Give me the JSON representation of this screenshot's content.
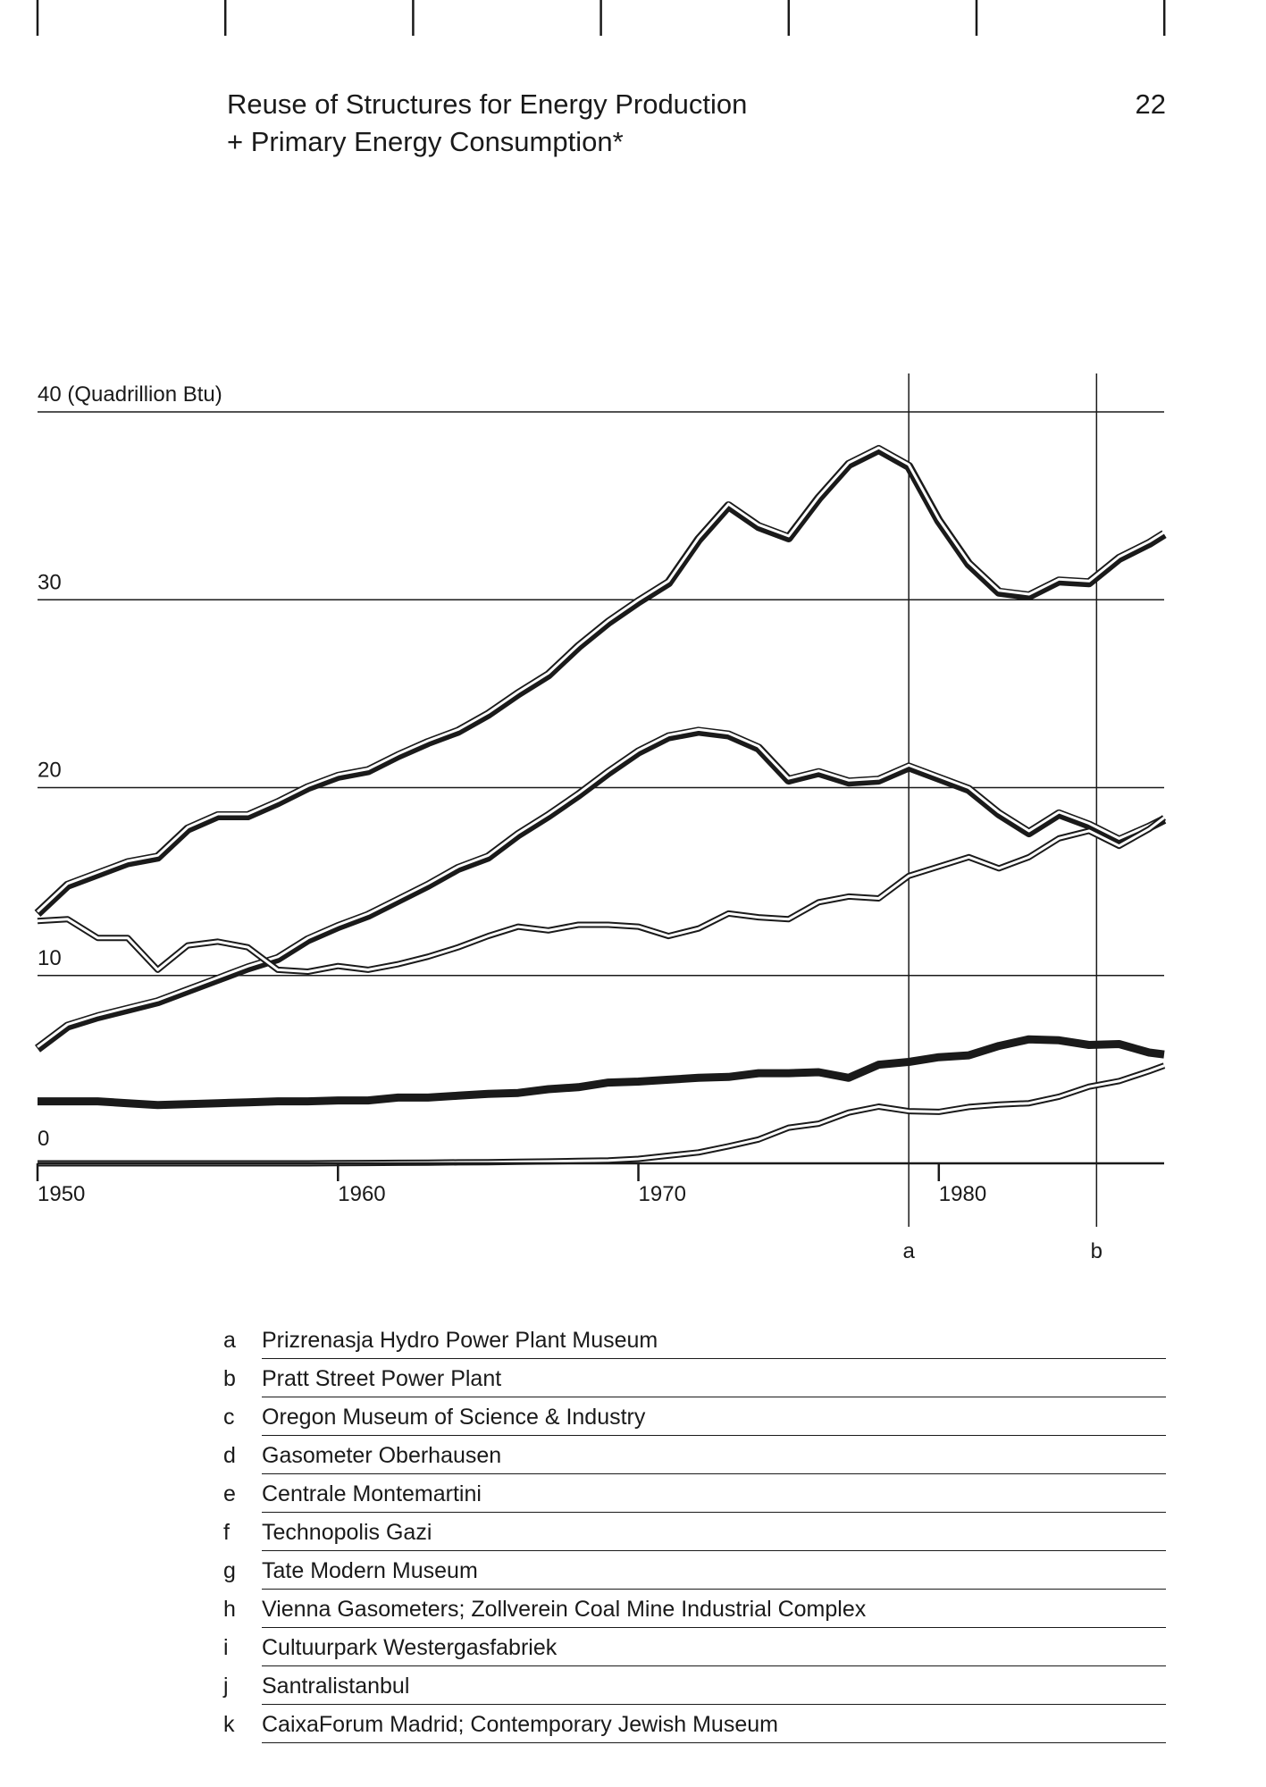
{
  "header": {
    "title_line1": "Reuse of Structures for Energy Production",
    "title_line2": "+ Primary Energy Consumption*",
    "page_number": "22"
  },
  "chart_data": {
    "type": "line",
    "title": "",
    "ylabel": "(Quadrillion Btu)",
    "ylim": [
      0,
      40
    ],
    "xlim": [
      1950,
      1987.5
    ],
    "x_ticks": [
      "1950",
      "1960",
      "1970",
      "1980"
    ],
    "y_ticks": [
      "0",
      "10",
      "20",
      "30",
      "40"
    ],
    "y_top_label": "40 (Quadrillion Btu)",
    "grid": true,
    "x": [
      1950,
      1951,
      1952,
      1953,
      1954,
      1955,
      1956,
      1957,
      1958,
      1959,
      1960,
      1961,
      1962,
      1963,
      1964,
      1965,
      1966,
      1967,
      1968,
      1969,
      1970,
      1971,
      1972,
      1973,
      1974,
      1975,
      1976,
      1977,
      1978,
      1979,
      1980,
      1981,
      1982,
      1983,
      1984,
      1985,
      1986,
      1987,
      1987.5
    ],
    "series": [
      {
        "style": "thick-outline",
        "values": [
          13.3,
          14.8,
          15.4,
          16.0,
          16.3,
          17.8,
          18.5,
          18.5,
          19.2,
          20.0,
          20.6,
          20.9,
          21.7,
          22.4,
          23.0,
          23.9,
          25.0,
          26.0,
          27.5,
          28.8,
          29.9,
          30.9,
          33.2,
          35.0,
          33.9,
          33.3,
          35.4,
          37.2,
          38.0,
          37.1,
          34.2,
          31.9,
          30.4,
          30.2,
          31.0,
          30.9,
          32.2,
          33.0,
          33.5
        ]
      },
      {
        "style": "thick-outline",
        "values": [
          6.1,
          7.3,
          7.8,
          8.2,
          8.6,
          9.2,
          9.8,
          10.4,
          10.9,
          11.9,
          12.6,
          13.2,
          14.0,
          14.8,
          15.7,
          16.3,
          17.5,
          18.5,
          19.6,
          20.8,
          21.9,
          22.7,
          23.0,
          22.8,
          22.1,
          20.4,
          20.8,
          20.3,
          20.4,
          21.1,
          20.5,
          19.9,
          18.6,
          17.6,
          18.6,
          18.0,
          17.2,
          17.9,
          18.3
        ]
      },
      {
        "style": "double",
        "values": [
          12.9,
          13.0,
          12.0,
          12.0,
          10.3,
          11.6,
          11.8,
          11.5,
          10.3,
          10.2,
          10.5,
          10.3,
          10.6,
          11.0,
          11.5,
          12.1,
          12.6,
          12.4,
          12.7,
          12.7,
          12.6,
          12.1,
          12.5,
          13.3,
          13.1,
          13.0,
          13.9,
          14.2,
          14.1,
          15.3,
          15.8,
          16.3,
          15.7,
          16.3,
          17.3,
          17.7,
          16.9,
          17.8,
          18.4
        ]
      },
      {
        "style": "heavy",
        "values": [
          3.3,
          3.3,
          3.3,
          3.2,
          3.1,
          3.15,
          3.2,
          3.25,
          3.3,
          3.3,
          3.35,
          3.35,
          3.5,
          3.5,
          3.6,
          3.7,
          3.75,
          3.95,
          4.05,
          4.3,
          4.35,
          4.45,
          4.55,
          4.6,
          4.8,
          4.8,
          4.85,
          4.55,
          5.25,
          5.4,
          5.65,
          5.75,
          6.25,
          6.6,
          6.55,
          6.3,
          6.35,
          5.9,
          5.8
        ]
      },
      {
        "style": "double",
        "values": [
          0.0,
          0.0,
          0.0,
          0.0,
          0.0,
          0.0,
          0.0,
          0.0,
          0.0,
          0.0,
          0.01,
          0.02,
          0.03,
          0.04,
          0.05,
          0.06,
          0.08,
          0.1,
          0.13,
          0.15,
          0.24,
          0.41,
          0.58,
          0.91,
          1.27,
          1.9,
          2.11,
          2.7,
          3.02,
          2.78,
          2.74,
          3.0,
          3.13,
          3.2,
          3.55,
          4.08,
          4.38,
          4.91,
          5.2
        ]
      }
    ],
    "markers": [
      {
        "label": "a",
        "x": 1979.0
      },
      {
        "label": "b",
        "x": 1985.25
      }
    ]
  },
  "legend": [
    {
      "letter": "a",
      "text": "Prizrenasja Hydro Power Plant Museum"
    },
    {
      "letter": "b",
      "text": "Pratt Street Power Plant"
    },
    {
      "letter": "c",
      "text": "Oregon Museum of Science & Industry"
    },
    {
      "letter": "d",
      "text": "Gasometer Oberhausen"
    },
    {
      "letter": "e",
      "text": "Centrale Montemartini"
    },
    {
      "letter": "f",
      "text": "Technopolis Gazi"
    },
    {
      "letter": "g",
      "text": "Tate Modern Museum"
    },
    {
      "letter": "h",
      "text": "Vienna Gasometers; Zollverein Coal Mine Industrial Complex"
    },
    {
      "letter": "i",
      "text": "Cultuurpark Westergasfabriek"
    },
    {
      "letter": "j",
      "text": "Santralistanbul"
    },
    {
      "letter": "k",
      "text": "CaixaForum Madrid; Contemporary Jewish Museum"
    }
  ]
}
